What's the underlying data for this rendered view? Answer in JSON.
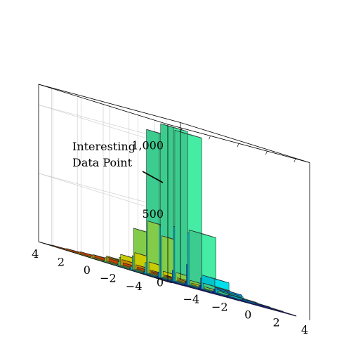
{
  "chart_data": {
    "type": "bar3d",
    "title": "",
    "xlabel": "",
    "ylabel": "",
    "zlabel": "",
    "x_ticks": [
      -4,
      -2,
      0,
      2,
      4
    ],
    "y_ticks": [
      -4,
      -2,
      0,
      2,
      4
    ],
    "z_ticks": [
      {
        "value": 0,
        "label": "0"
      },
      {
        "value": 500,
        "label": "500"
      },
      {
        "value": 1000,
        "label": "1,000"
      }
    ],
    "xlim": [
      -5,
      5
    ],
    "ylim": [
      -5,
      5
    ],
    "zlim": [
      0,
      1150
    ],
    "grid": true,
    "colormap": "jet",
    "annotation": {
      "lines": [
        "Interesting",
        "Data Point"
      ],
      "target": [
        -0.5,
        0,
        380
      ]
    },
    "bars": [
      {
        "x": -4,
        "y": 4,
        "z": 5
      },
      {
        "x": -3,
        "y": 4,
        "z": 8
      },
      {
        "x": -2,
        "y": 4,
        "z": 12
      },
      {
        "x": -1,
        "y": 4,
        "z": 15
      },
      {
        "x": 0,
        "y": 4,
        "z": 18
      },
      {
        "x": 1,
        "y": 4,
        "z": 15
      },
      {
        "x": 2,
        "y": 4,
        "z": 12
      },
      {
        "x": 3,
        "y": 4,
        "z": 8
      },
      {
        "x": 4,
        "y": 4,
        "z": 5
      },
      {
        "x": -4,
        "y": 3,
        "z": 8
      },
      {
        "x": -3,
        "y": 3,
        "z": 12
      },
      {
        "x": -2,
        "y": 3,
        "z": 20
      },
      {
        "x": -1,
        "y": 3,
        "z": 30
      },
      {
        "x": 0,
        "y": 3,
        "z": 40
      },
      {
        "x": 1,
        "y": 3,
        "z": 30
      },
      {
        "x": 2,
        "y": 3,
        "z": 20
      },
      {
        "x": 3,
        "y": 3,
        "z": 12
      },
      {
        "x": 4,
        "y": 3,
        "z": 8
      },
      {
        "x": -4,
        "y": 2,
        "z": 10
      },
      {
        "x": -3,
        "y": 2,
        "z": 20
      },
      {
        "x": -2,
        "y": 2,
        "z": 40
      },
      {
        "x": -1,
        "y": 2,
        "z": 80
      },
      {
        "x": 0,
        "y": 2,
        "z": 120
      },
      {
        "x": 1,
        "y": 2,
        "z": 80
      },
      {
        "x": 2,
        "y": 2,
        "z": 40
      },
      {
        "x": 3,
        "y": 2,
        "z": 20
      },
      {
        "x": 4,
        "y": 2,
        "z": 10
      },
      {
        "x": -4,
        "y": 1,
        "z": 12
      },
      {
        "x": -3,
        "y": 1,
        "z": 30
      },
      {
        "x": -2,
        "y": 1,
        "z": 60
      },
      {
        "x": -1,
        "y": 1,
        "z": 300
      },
      {
        "x": 0,
        "y": 1,
        "z": 380
      },
      {
        "x": 1,
        "y": 1,
        "z": 300
      },
      {
        "x": 2,
        "y": 1,
        "z": 60
      },
      {
        "x": 3,
        "y": 1,
        "z": 30
      },
      {
        "x": 4,
        "y": 1,
        "z": 12
      },
      {
        "x": -4,
        "y": 0,
        "z": 12
      },
      {
        "x": -3,
        "y": 0,
        "z": 30
      },
      {
        "x": -2,
        "y": 0,
        "z": 100
      },
      {
        "x": -1,
        "y": 0,
        "z": 1050
      },
      {
        "x": 0,
        "y": 0,
        "z": 1120
      },
      {
        "x": 1,
        "y": 0,
        "z": 1100
      },
      {
        "x": 2,
        "y": 0,
        "z": 400
      },
      {
        "x": 3,
        "y": 0,
        "z": 40
      },
      {
        "x": 4,
        "y": 0,
        "z": 12
      },
      {
        "x": -4,
        "y": -1,
        "z": 10
      },
      {
        "x": -3,
        "y": -1,
        "z": 25
      },
      {
        "x": -2,
        "y": -1,
        "z": 80
      },
      {
        "x": -1,
        "y": -1,
        "z": 380
      },
      {
        "x": 0,
        "y": -1,
        "z": 400
      },
      {
        "x": 1,
        "y": -1,
        "z": 380
      },
      {
        "x": 2,
        "y": -1,
        "z": 100
      },
      {
        "x": 3,
        "y": -1,
        "z": 25
      },
      {
        "x": 4,
        "y": -1,
        "z": 10
      },
      {
        "x": -4,
        "y": -2,
        "z": 8
      },
      {
        "x": -3,
        "y": -2,
        "z": 15
      },
      {
        "x": -2,
        "y": -2,
        "z": 40
      },
      {
        "x": -1,
        "y": -2,
        "z": 80
      },
      {
        "x": 0,
        "y": -2,
        "z": 150
      },
      {
        "x": 1,
        "y": -2,
        "z": 80
      },
      {
        "x": 2,
        "y": -2,
        "z": 40
      },
      {
        "x": 3,
        "y": -2,
        "z": 15
      },
      {
        "x": 4,
        "y": -2,
        "z": 8
      },
      {
        "x": -4,
        "y": -3,
        "z": 6
      },
      {
        "x": -3,
        "y": -3,
        "z": 10
      },
      {
        "x": -2,
        "y": -3,
        "z": 15
      },
      {
        "x": -1,
        "y": -3,
        "z": 25
      },
      {
        "x": 0,
        "y": -3,
        "z": 30
      },
      {
        "x": 1,
        "y": -3,
        "z": 25
      },
      {
        "x": 2,
        "y": -3,
        "z": 15
      },
      {
        "x": 3,
        "y": -3,
        "z": 10
      },
      {
        "x": 4,
        "y": -3,
        "z": 6
      },
      {
        "x": -4,
        "y": -4,
        "z": 4
      },
      {
        "x": -3,
        "y": -4,
        "z": 6
      },
      {
        "x": -2,
        "y": -4,
        "z": 8
      },
      {
        "x": -1,
        "y": -4,
        "z": 10
      },
      {
        "x": 0,
        "y": -4,
        "z": 12
      },
      {
        "x": 1,
        "y": -4,
        "z": 10
      },
      {
        "x": 2,
        "y": -4,
        "z": 8
      },
      {
        "x": 3,
        "y": -4,
        "z": 6
      },
      {
        "x": 4,
        "y": -4,
        "z": 4
      }
    ]
  }
}
